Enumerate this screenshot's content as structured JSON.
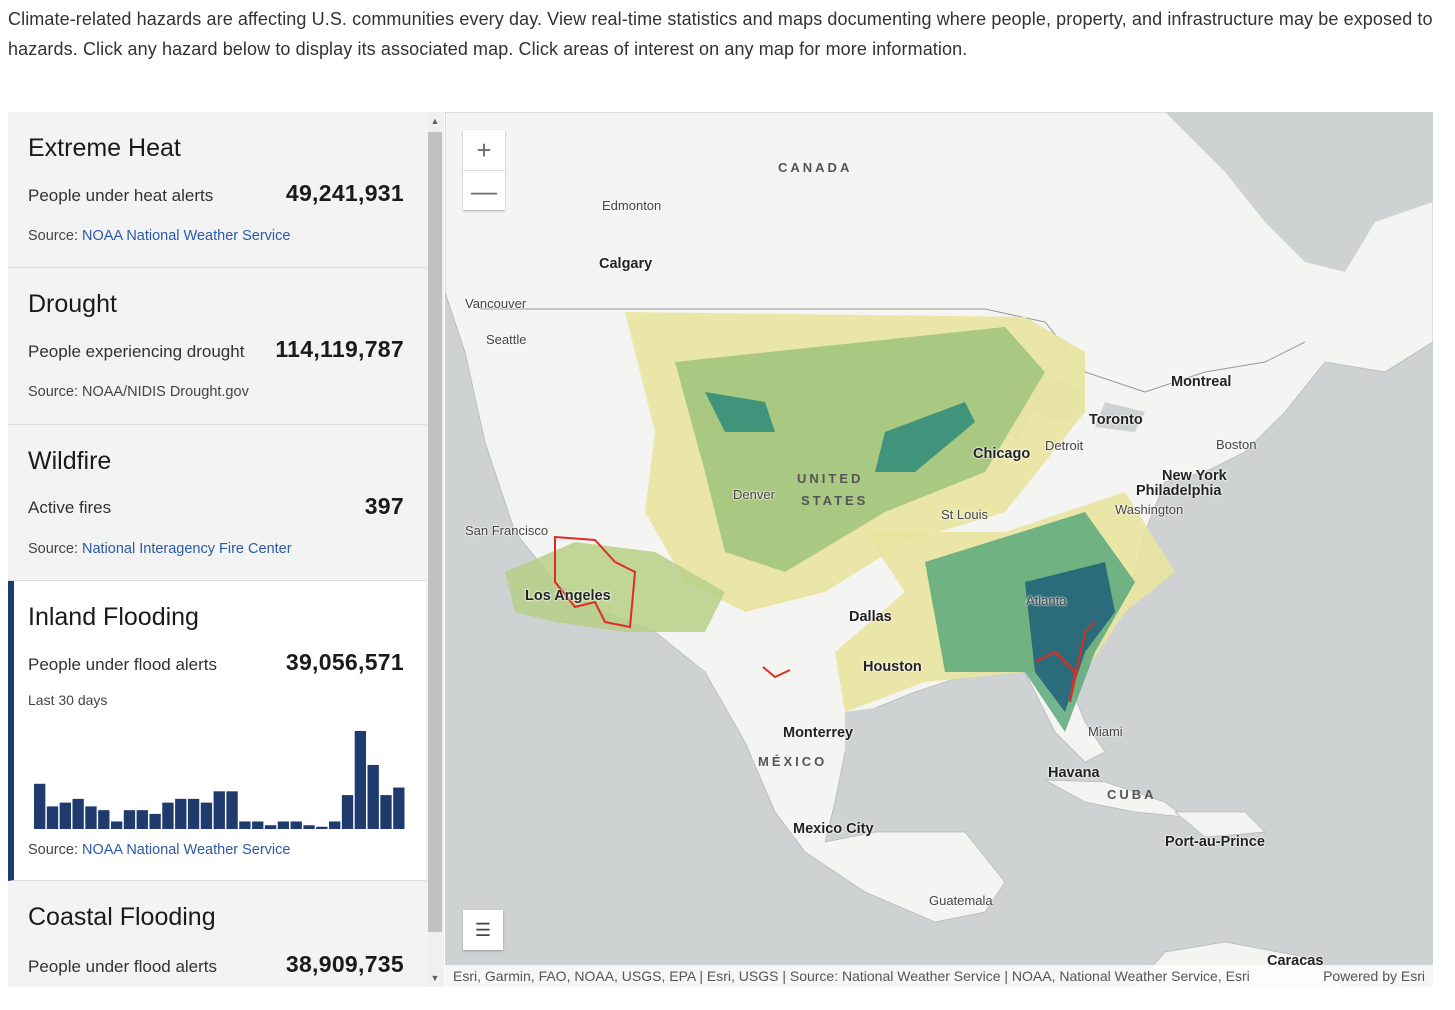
{
  "intro": "Climate-related hazards are affecting U.S. communities every day. View real-time statistics and maps documenting where people, property, and infrastructure may be exposed to hazards. Click any hazard below to display its associated map. Click areas of interest on any map for more information.",
  "hazards": [
    {
      "title": "Extreme Heat",
      "label": "People under heat alerts",
      "value": "49,241,931",
      "source_prefix": "Source: ",
      "source_link": "NOAA National Weather Service"
    },
    {
      "title": "Drought",
      "label": "People experiencing drought",
      "value": "114,119,787",
      "source_prefix": "Source: ",
      "source_text": "NOAA/NIDIS Drought.gov"
    },
    {
      "title": "Wildfire",
      "label": "Active fires",
      "value": "397",
      "source_prefix": "Source: ",
      "source_link": "National Interagency Fire Center"
    },
    {
      "title": "Inland Flooding",
      "label": "People under flood alerts",
      "value": "39,056,571",
      "period": "Last 30 days",
      "source_prefix": "Source: ",
      "source_link": "NOAA National Weather Service"
    },
    {
      "title": "Coastal Flooding",
      "label": "People under flood alerts",
      "value": "38,909,735"
    }
  ],
  "chart_data": {
    "type": "bar",
    "values": [
      6,
      3,
      3.5,
      4,
      3,
      2.5,
      1,
      2.5,
      2.5,
      2,
      3.5,
      4,
      4,
      3.5,
      5,
      5,
      1,
      1,
      0.5,
      1,
      1,
      0.5,
      0.3,
      1,
      4.5,
      13,
      8.5,
      4.5,
      5.5
    ],
    "color": "#1f3b6e"
  },
  "map": {
    "zoom_in": "+",
    "zoom_out": "—",
    "legend_icon": "legend-list-icon",
    "attribution_left": "Esri, Garmin, FAO, NOAA, USGS, EPA | Esri, USGS | Source: National Weather Service | NOAA, National Weather Service, Esri",
    "attribution_right": "Powered by Esri",
    "labels": {
      "canada": "CANADA",
      "edmonton": "Edmonton",
      "calgary": "Calgary",
      "vancouver": "Vancouver",
      "seattle": "Seattle",
      "united": "UNITED",
      "states": "STATES",
      "denver": "Denver",
      "sf": "San Francisco",
      "la": "Los Angeles",
      "dallas": "Dallas",
      "houston": "Houston",
      "stlouis": "St Louis",
      "chicago": "Chicago",
      "detroit": "Detroit",
      "toronto": "Toronto",
      "montreal": "Montreal",
      "boston": "Boston",
      "newyork": "New York",
      "philadelphia": "Philadelphia",
      "washington": "Washington",
      "atlanta": "Atlanta",
      "miami": "Miami",
      "havana": "Havana",
      "cuba": "CUBA",
      "monterrey": "Monterrey",
      "mexico": "MÉXICO",
      "mexicocity": "Mexico City",
      "portauprince": "Port-au-Prince",
      "guatemala": "Guatemala",
      "caracas": "Caracas"
    }
  }
}
